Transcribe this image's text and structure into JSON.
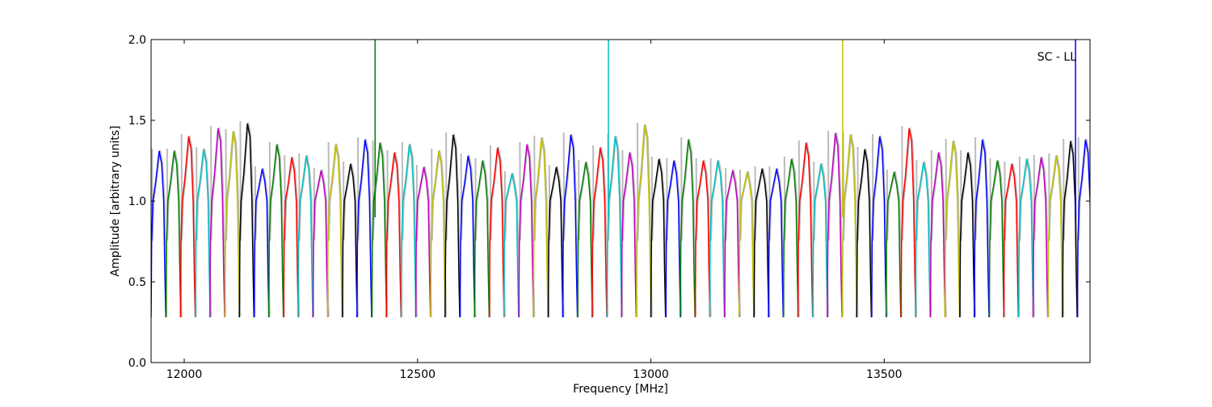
{
  "chart_data": {
    "type": "line",
    "title": "",
    "annotation": "SC - LL",
    "xlabel": "Frequency [MHz]",
    "ylabel": "Amplitude [arbitrary units]",
    "xlim": [
      11929,
      13941
    ],
    "ylim": [
      0.0,
      2.0
    ],
    "grid": false,
    "xticks": [
      12000,
      12500,
      13000,
      13500
    ],
    "xtick_labels": [
      "12000",
      "12500",
      "13000",
      "13500"
    ],
    "yticks": [
      0.0,
      0.5,
      1.0,
      1.5,
      2.0
    ],
    "ytick_labels": [
      "0.0",
      "0.5",
      "1.0",
      "1.5",
      "2.0"
    ],
    "color_cycle": [
      "#0000ff",
      "#008000",
      "#ff0000",
      "#00bfbf",
      "#bf00bf",
      "#bfbf00",
      "#000000"
    ],
    "channel_width_mhz": 31.5,
    "channel_min": 0.28,
    "channels": [
      [
        11929,
        1.31
      ],
      [
        11961,
        1.31
      ],
      [
        11992,
        1.4
      ],
      [
        12024,
        1.32
      ],
      [
        12055,
        1.45
      ],
      [
        12087,
        1.43
      ],
      [
        12118,
        1.48
      ],
      [
        12150,
        1.2
      ],
      [
        12181,
        1.35
      ],
      [
        12213,
        1.27
      ],
      [
        12244,
        1.28
      ],
      [
        12276,
        1.19
      ],
      [
        12307,
        1.35
      ],
      [
        12339,
        1.23
      ],
      [
        12370,
        1.38
      ],
      [
        12402,
        1.36
      ],
      [
        12433,
        1.3
      ],
      [
        12465,
        1.35
      ],
      [
        12496,
        1.21
      ],
      [
        12528,
        1.31
      ],
      [
        12559,
        1.41
      ],
      [
        12591,
        1.28
      ],
      [
        12622,
        1.25
      ],
      [
        12654,
        1.33
      ],
      [
        12685,
        1.17
      ],
      [
        12717,
        1.35
      ],
      [
        12748,
        1.39
      ],
      [
        12780,
        1.21
      ],
      [
        12811,
        1.41
      ],
      [
        12843,
        1.24
      ],
      [
        12874,
        1.33
      ],
      [
        12906,
        1.4
      ],
      [
        12937,
        1.3
      ],
      [
        12969,
        1.47
      ],
      [
        13000,
        1.26
      ],
      [
        13032,
        1.25
      ],
      [
        13063,
        1.38
      ],
      [
        13095,
        1.25
      ],
      [
        13126,
        1.25
      ],
      [
        13158,
        1.19
      ],
      [
        13189,
        1.18
      ],
      [
        13221,
        1.2
      ],
      [
        13252,
        1.2
      ],
      [
        13284,
        1.26
      ],
      [
        13315,
        1.36
      ],
      [
        13347,
        1.23
      ],
      [
        13378,
        1.42
      ],
      [
        13410,
        1.41
      ],
      [
        13441,
        1.32
      ],
      [
        13473,
        1.4
      ],
      [
        13504,
        1.18
      ],
      [
        13536,
        1.45
      ],
      [
        13567,
        1.24
      ],
      [
        13599,
        1.3
      ],
      [
        13630,
        1.37
      ],
      [
        13662,
        1.3
      ],
      [
        13693,
        1.38
      ],
      [
        13725,
        1.25
      ],
      [
        13756,
        1.23
      ],
      [
        13788,
        1.26
      ],
      [
        13819,
        1.27
      ],
      [
        13851,
        1.28
      ],
      [
        13882,
        1.37
      ],
      [
        13914,
        1.38
      ]
    ],
    "spikes": [
      {
        "x": 12409,
        "y": 2.0,
        "channel": 15
      },
      {
        "x": 12909,
        "y": 2.0,
        "channel": 31
      },
      {
        "x": 13411,
        "y": 2.0,
        "channel": 47
      },
      {
        "x": 13910,
        "y": 2.0,
        "channel": 63
      }
    ]
  }
}
